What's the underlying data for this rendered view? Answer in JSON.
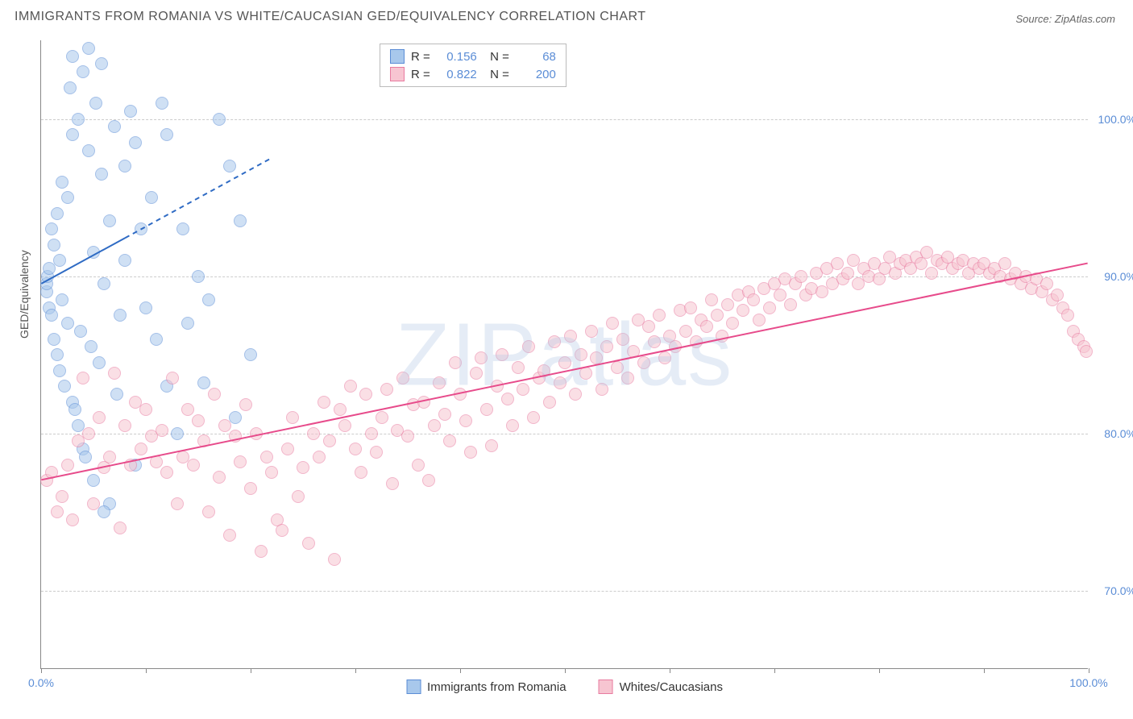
{
  "title": "IMMIGRANTS FROM ROMANIA VS WHITE/CAUCASIAN GED/EQUIVALENCY CORRELATION CHART",
  "source": "Source: ZipAtlas.com",
  "watermark": "ZIPatlas",
  "ylabel": "GED/Equivalency",
  "chart": {
    "type": "scatter",
    "background_color": "#ffffff",
    "grid_color": "#cccccc",
    "axis_color": "#888888",
    "label_color": "#5b8dd6",
    "title_fontsize": 16,
    "label_fontsize": 14,
    "marker_size": 16,
    "marker_opacity": 0.55,
    "xlim": [
      0,
      100
    ],
    "ylim": [
      65,
      105
    ],
    "xticks": [
      0,
      10,
      20,
      30,
      40,
      50,
      60,
      70,
      80,
      90,
      100
    ],
    "xtick_labels": {
      "0": "0.0%",
      "100": "100.0%"
    },
    "yticks": [
      70,
      80,
      90,
      100
    ],
    "ytick_labels": [
      "70.0%",
      "80.0%",
      "90.0%",
      "100.0%"
    ]
  },
  "series": [
    {
      "name": "Immigrants from Romania",
      "color_fill": "#a8c8ec",
      "color_stroke": "#5b8dd6",
      "R": "0.156",
      "N": "68",
      "trend": {
        "x1": 0,
        "y1": 89.5,
        "x2": 22,
        "y2": 97.5,
        "dash_from_x": 8,
        "line_color": "#2f6bc4",
        "line_width": 2
      },
      "points": [
        [
          0.5,
          89
        ],
        [
          0.5,
          89.5
        ],
        [
          0.6,
          90
        ],
        [
          0.8,
          90.5
        ],
        [
          0.8,
          88
        ],
        [
          1,
          93
        ],
        [
          1,
          87.5
        ],
        [
          1.2,
          86
        ],
        [
          1.2,
          92
        ],
        [
          1.5,
          94
        ],
        [
          1.5,
          85
        ],
        [
          1.8,
          91
        ],
        [
          1.8,
          84
        ],
        [
          2,
          96
        ],
        [
          2,
          88.5
        ],
        [
          2.2,
          83
        ],
        [
          2.5,
          95
        ],
        [
          2.5,
          87
        ],
        [
          2.8,
          102
        ],
        [
          3,
          82
        ],
        [
          3,
          99
        ],
        [
          3,
          104
        ],
        [
          3.2,
          81.5
        ],
        [
          3.5,
          80.5
        ],
        [
          3.5,
          100
        ],
        [
          3.8,
          86.5
        ],
        [
          4,
          103
        ],
        [
          4,
          79
        ],
        [
          4.2,
          78.5
        ],
        [
          4.5,
          98
        ],
        [
          4.5,
          104.5
        ],
        [
          4.8,
          85.5
        ],
        [
          5,
          91.5
        ],
        [
          5,
          77
        ],
        [
          5.2,
          101
        ],
        [
          5.5,
          84.5
        ],
        [
          5.8,
          96.5
        ],
        [
          5.8,
          103.5
        ],
        [
          6,
          89.5
        ],
        [
          6.5,
          75.5
        ],
        [
          6.5,
          93.5
        ],
        [
          7,
          99.5
        ],
        [
          7.2,
          82.5
        ],
        [
          7.5,
          87.5
        ],
        [
          8,
          91
        ],
        [
          8,
          97
        ],
        [
          8.5,
          100.5
        ],
        [
          9,
          78
        ],
        [
          9,
          98.5
        ],
        [
          9.5,
          93
        ],
        [
          10,
          88
        ],
        [
          10.5,
          95
        ],
        [
          11,
          86
        ],
        [
          11.5,
          101
        ],
        [
          12,
          99
        ],
        [
          13,
          80
        ],
        [
          13.5,
          93
        ],
        [
          14,
          87
        ],
        [
          15,
          90
        ],
        [
          15.5,
          83.2
        ],
        [
          16,
          88.5
        ],
        [
          17,
          100
        ],
        [
          18,
          97
        ],
        [
          18.5,
          81
        ],
        [
          19,
          93.5
        ],
        [
          20,
          85
        ],
        [
          12,
          83
        ],
        [
          6,
          75
        ]
      ]
    },
    {
      "name": "Whites/Caucasians",
      "color_fill": "#f7c5d1",
      "color_stroke": "#e87ba0",
      "R": "0.822",
      "N": "200",
      "trend": {
        "x1": 0,
        "y1": 77,
        "x2": 100,
        "y2": 90.8,
        "line_color": "#e74b8b",
        "line_width": 2
      },
      "points": [
        [
          0.5,
          77
        ],
        [
          1,
          77.5
        ],
        [
          1.5,
          75
        ],
        [
          2,
          76
        ],
        [
          2.5,
          78
        ],
        [
          3,
          74.5
        ],
        [
          3.5,
          79.5
        ],
        [
          4,
          83.5
        ],
        [
          4.5,
          80
        ],
        [
          5,
          75.5
        ],
        [
          5.5,
          81
        ],
        [
          6,
          77.8
        ],
        [
          6.5,
          78.5
        ],
        [
          7,
          83.8
        ],
        [
          7.5,
          74
        ],
        [
          8,
          80.5
        ],
        [
          8.5,
          78
        ],
        [
          9,
          82
        ],
        [
          9.5,
          79
        ],
        [
          10,
          81.5
        ],
        [
          10.5,
          79.8
        ],
        [
          11,
          78.2
        ],
        [
          11.5,
          80.2
        ],
        [
          12,
          77.5
        ],
        [
          12.5,
          83.5
        ],
        [
          13,
          75.5
        ],
        [
          13.5,
          78.5
        ],
        [
          14,
          81.5
        ],
        [
          14.5,
          78
        ],
        [
          15,
          80.8
        ],
        [
          15.5,
          79.5
        ],
        [
          16,
          75
        ],
        [
          16.5,
          82.5
        ],
        [
          17,
          77.2
        ],
        [
          17.5,
          80.5
        ],
        [
          18,
          73.5
        ],
        [
          18.5,
          79.8
        ],
        [
          19,
          78.2
        ],
        [
          19.5,
          81.8
        ],
        [
          20,
          76.5
        ],
        [
          20.5,
          80
        ],
        [
          21,
          72.5
        ],
        [
          21.5,
          78.5
        ],
        [
          22,
          77.5
        ],
        [
          22.5,
          74.5
        ],
        [
          23,
          73.8
        ],
        [
          23.5,
          79
        ],
        [
          24,
          81
        ],
        [
          24.5,
          76
        ],
        [
          25,
          77.8
        ],
        [
          25.5,
          73
        ],
        [
          26,
          80
        ],
        [
          26.5,
          78.5
        ],
        [
          27,
          82
        ],
        [
          27.5,
          79.5
        ],
        [
          28,
          72
        ],
        [
          28.5,
          81.5
        ],
        [
          29,
          80.5
        ],
        [
          29.5,
          83
        ],
        [
          30,
          79
        ],
        [
          30.5,
          77.5
        ],
        [
          31,
          82.5
        ],
        [
          31.5,
          80
        ],
        [
          32,
          78.8
        ],
        [
          32.5,
          81
        ],
        [
          33,
          82.8
        ],
        [
          33.5,
          76.8
        ],
        [
          34,
          80.2
        ],
        [
          34.5,
          83.5
        ],
        [
          35,
          79.8
        ],
        [
          35.5,
          81.8
        ],
        [
          36,
          78
        ],
        [
          36.5,
          82
        ],
        [
          37,
          77
        ],
        [
          37.5,
          80.5
        ],
        [
          38,
          83.2
        ],
        [
          38.5,
          81.2
        ],
        [
          39,
          79.5
        ],
        [
          39.5,
          84.5
        ],
        [
          40,
          82.5
        ],
        [
          40.5,
          80.8
        ],
        [
          41,
          78.8
        ],
        [
          41.5,
          83.8
        ],
        [
          42,
          84.8
        ],
        [
          42.5,
          81.5
        ],
        [
          43,
          79.2
        ],
        [
          43.5,
          83
        ],
        [
          44,
          85
        ],
        [
          44.5,
          82.2
        ],
        [
          45,
          80.5
        ],
        [
          45.5,
          84.2
        ],
        [
          46,
          82.8
        ],
        [
          46.5,
          85.5
        ],
        [
          47,
          81
        ],
        [
          47.5,
          83.5
        ],
        [
          48,
          84
        ],
        [
          48.5,
          82
        ],
        [
          49,
          85.8
        ],
        [
          49.5,
          83.2
        ],
        [
          50,
          84.5
        ],
        [
          50.5,
          86.2
        ],
        [
          51,
          82.5
        ],
        [
          51.5,
          85
        ],
        [
          52,
          83.8
        ],
        [
          52.5,
          86.5
        ],
        [
          53,
          84.8
        ],
        [
          53.5,
          82.8
        ],
        [
          54,
          85.5
        ],
        [
          54.5,
          87
        ],
        [
          55,
          84.2
        ],
        [
          55.5,
          86
        ],
        [
          56,
          83.5
        ],
        [
          56.5,
          85.2
        ],
        [
          57,
          87.2
        ],
        [
          57.5,
          84.5
        ],
        [
          58,
          86.8
        ],
        [
          58.5,
          85.8
        ],
        [
          59,
          87.5
        ],
        [
          59.5,
          84.8
        ],
        [
          60,
          86.2
        ],
        [
          60.5,
          85.5
        ],
        [
          61,
          87.8
        ],
        [
          61.5,
          86.5
        ],
        [
          62,
          88
        ],
        [
          62.5,
          85.8
        ],
        [
          63,
          87.2
        ],
        [
          63.5,
          86.8
        ],
        [
          64,
          88.5
        ],
        [
          64.5,
          87.5
        ],
        [
          65,
          86.2
        ],
        [
          65.5,
          88.2
        ],
        [
          66,
          87
        ],
        [
          66.5,
          88.8
        ],
        [
          67,
          87.8
        ],
        [
          67.5,
          89
        ],
        [
          68,
          88.5
        ],
        [
          68.5,
          87.2
        ],
        [
          69,
          89.2
        ],
        [
          69.5,
          88
        ],
        [
          70,
          89.5
        ],
        [
          70.5,
          88.8
        ],
        [
          71,
          89.8
        ],
        [
          71.5,
          88.2
        ],
        [
          72,
          89.5
        ],
        [
          72.5,
          90
        ],
        [
          73,
          88.8
        ],
        [
          73.5,
          89.2
        ],
        [
          74,
          90.2
        ],
        [
          74.5,
          89
        ],
        [
          75,
          90.5
        ],
        [
          75.5,
          89.5
        ],
        [
          76,
          90.8
        ],
        [
          76.5,
          89.8
        ],
        [
          77,
          90.2
        ],
        [
          77.5,
          91
        ],
        [
          78,
          89.5
        ],
        [
          78.5,
          90.5
        ],
        [
          79,
          90
        ],
        [
          79.5,
          90.8
        ],
        [
          80,
          89.8
        ],
        [
          80.5,
          90.5
        ],
        [
          81,
          91.2
        ],
        [
          81.5,
          90.2
        ],
        [
          82,
          90.8
        ],
        [
          82.5,
          91
        ],
        [
          83,
          90.5
        ],
        [
          83.5,
          91.2
        ],
        [
          84,
          90.8
        ],
        [
          84.5,
          91.5
        ],
        [
          85,
          90.2
        ],
        [
          85.5,
          91
        ],
        [
          86,
          90.8
        ],
        [
          86.5,
          91.2
        ],
        [
          87,
          90.5
        ],
        [
          87.5,
          90.8
        ],
        [
          88,
          91
        ],
        [
          88.5,
          90.2
        ],
        [
          89,
          90.8
        ],
        [
          89.5,
          90.5
        ],
        [
          90,
          90.8
        ],
        [
          90.5,
          90.2
        ],
        [
          91,
          90.5
        ],
        [
          91.5,
          90
        ],
        [
          92,
          90.8
        ],
        [
          92.5,
          89.8
        ],
        [
          93,
          90.2
        ],
        [
          93.5,
          89.5
        ],
        [
          94,
          90
        ],
        [
          94.5,
          89.2
        ],
        [
          95,
          89.8
        ],
        [
          95.5,
          89
        ],
        [
          96,
          89.5
        ],
        [
          96.5,
          88.5
        ],
        [
          97,
          88.8
        ],
        [
          97.5,
          88
        ],
        [
          98,
          87.5
        ],
        [
          98.5,
          86.5
        ],
        [
          99,
          86
        ],
        [
          99.5,
          85.5
        ],
        [
          99.8,
          85.2
        ]
      ]
    }
  ],
  "legend_bottom": [
    {
      "label": "Immigrants from Romania",
      "fill": "#a8c8ec",
      "stroke": "#5b8dd6"
    },
    {
      "label": "Whites/Caucasians",
      "fill": "#f7c5d1",
      "stroke": "#e87ba0"
    }
  ]
}
